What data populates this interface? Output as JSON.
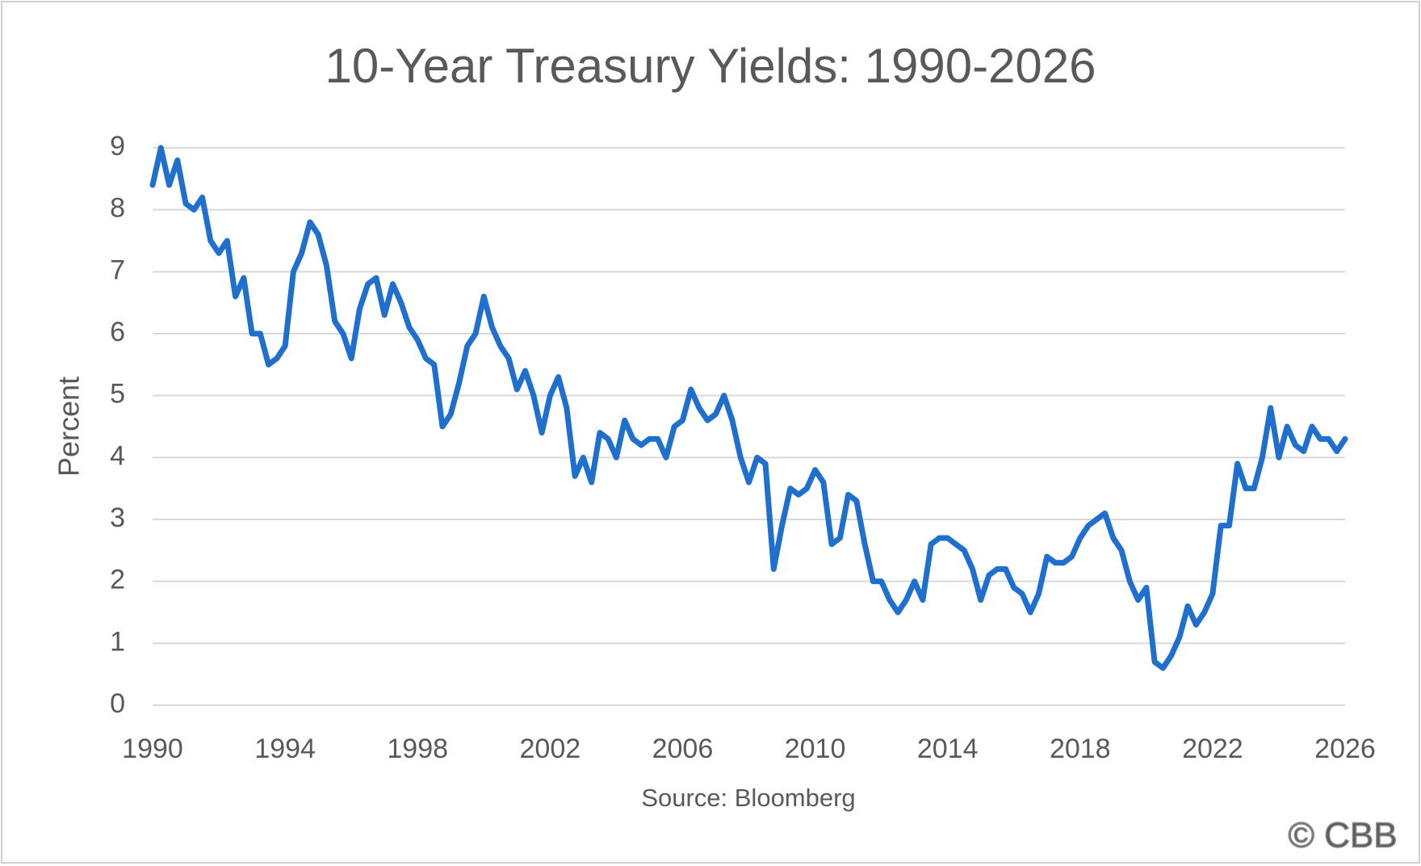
{
  "chart_data": {
    "type": "line",
    "title": "10-Year Treasury Yields: 1990-2026",
    "y_label": "Percent",
    "source": "Source: Bloomberg",
    "watermark": "© CBB",
    "x": [
      1990,
      1990.25,
      1990.5,
      1990.75,
      1991,
      1991.25,
      1991.5,
      1991.75,
      1992,
      1992.25,
      1992.5,
      1992.75,
      1993,
      1993.25,
      1993.5,
      1993.75,
      1994,
      1994.25,
      1994.5,
      1994.75,
      1995,
      1995.25,
      1995.5,
      1995.75,
      1996,
      1996.25,
      1996.5,
      1996.75,
      1997,
      1997.25,
      1997.5,
      1997.75,
      1998,
      1998.25,
      1998.5,
      1998.75,
      1999,
      1999.25,
      1999.5,
      1999.75,
      2000,
      2000.25,
      2000.5,
      2000.75,
      2001,
      2001.25,
      2001.5,
      2001.75,
      2002,
      2002.25,
      2002.5,
      2002.75,
      2003,
      2003.25,
      2003.5,
      2003.75,
      2004,
      2004.25,
      2004.5,
      2004.75,
      2005,
      2005.25,
      2005.5,
      2005.75,
      2006,
      2006.25,
      2006.5,
      2006.75,
      2007,
      2007.25,
      2007.5,
      2007.75,
      2008,
      2008.25,
      2008.5,
      2008.75,
      2009,
      2009.25,
      2009.5,
      2009.75,
      2010,
      2010.25,
      2010.5,
      2010.75,
      2011,
      2011.25,
      2011.5,
      2011.75,
      2012,
      2012.25,
      2012.5,
      2012.75,
      2013,
      2013.25,
      2013.5,
      2013.75,
      2014,
      2014.25,
      2014.5,
      2014.75,
      2015,
      2015.25,
      2015.5,
      2015.75,
      2016,
      2016.25,
      2016.5,
      2016.75,
      2017,
      2017.25,
      2017.5,
      2017.75,
      2018,
      2018.25,
      2018.5,
      2018.75,
      2019,
      2019.25,
      2019.5,
      2019.75,
      2020,
      2020.25,
      2020.5,
      2020.75,
      2021,
      2021.25,
      2021.5,
      2021.75,
      2022,
      2022.25,
      2022.5,
      2022.75,
      2023,
      2023.25,
      2023.5,
      2023.75,
      2024,
      2024.25,
      2024.5,
      2024.75,
      2025,
      2025.25,
      2025.5,
      2025.75,
      2026
    ],
    "series": [
      {
        "name": "10-Year Treasury Yield",
        "color": "#1f6fcf",
        "values": [
          8.4,
          9.0,
          8.4,
          8.8,
          8.1,
          8.0,
          8.2,
          7.5,
          7.3,
          7.5,
          6.6,
          6.9,
          6.0,
          6.0,
          5.5,
          5.6,
          5.8,
          7.0,
          7.3,
          7.8,
          7.6,
          7.1,
          6.2,
          6.0,
          5.6,
          6.4,
          6.8,
          6.9,
          6.3,
          6.8,
          6.5,
          6.1,
          5.9,
          5.6,
          5.5,
          4.5,
          4.7,
          5.2,
          5.8,
          6.0,
          6.6,
          6.1,
          5.8,
          5.6,
          5.1,
          5.4,
          5.0,
          4.4,
          5.0,
          5.3,
          4.8,
          3.7,
          4.0,
          3.6,
          4.4,
          4.3,
          4.0,
          4.6,
          4.3,
          4.2,
          4.3,
          4.3,
          4.0,
          4.5,
          4.6,
          5.1,
          4.8,
          4.6,
          4.7,
          5.0,
          4.6,
          4.0,
          3.6,
          4.0,
          3.9,
          2.2,
          2.9,
          3.5,
          3.4,
          3.5,
          3.8,
          3.6,
          2.6,
          2.7,
          3.4,
          3.3,
          2.6,
          2.0,
          2.0,
          1.7,
          1.5,
          1.7,
          2.0,
          1.7,
          2.6,
          2.7,
          2.7,
          2.6,
          2.5,
          2.2,
          1.7,
          2.1,
          2.2,
          2.2,
          1.9,
          1.8,
          1.5,
          1.8,
          2.4,
          2.3,
          2.3,
          2.4,
          2.7,
          2.9,
          3.0,
          3.1,
          2.7,
          2.5,
          2.0,
          1.7,
          1.9,
          0.7,
          0.6,
          0.8,
          1.1,
          1.6,
          1.3,
          1.5,
          1.8,
          2.9,
          2.9,
          3.9,
          3.5,
          3.5,
          4.0,
          4.8,
          4.0,
          4.5,
          4.2,
          4.1,
          4.5,
          4.3,
          4.3,
          4.1,
          4.3
        ]
      }
    ],
    "xlim": [
      1990,
      2026
    ],
    "xticks": [
      1990,
      1994,
      1998,
      2002,
      2006,
      2010,
      2014,
      2018,
      2022,
      2026
    ],
    "ylim": [
      0,
      9
    ],
    "yticks": [
      0,
      1,
      2,
      3,
      4,
      5,
      6,
      7,
      8,
      9
    ],
    "grid": true
  }
}
